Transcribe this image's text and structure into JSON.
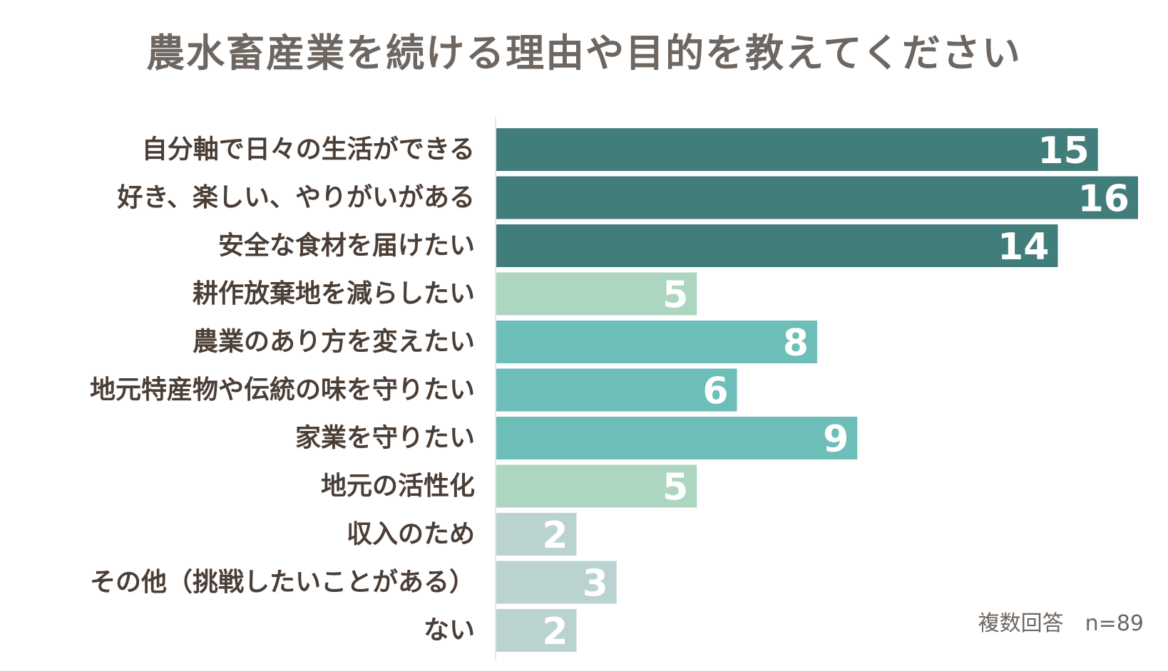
{
  "chart_data": {
    "type": "bar",
    "orientation": "horizontal",
    "title": "農水畜産業を続ける理由や目的を教えてください",
    "categories": [
      "自分軸で日々の生活ができる",
      "好き、楽しい、やりがいがある",
      "安全な食材を届けたい",
      "耕作放棄地を減らしたい",
      "農業のあり方を変えたい",
      "地元特産物や伝統の味を守りたい",
      "家業を守りたい",
      "地元の活性化",
      "収入のため",
      "その他（挑戦したいことがある）",
      "ない"
    ],
    "values": [
      15,
      16,
      14,
      5,
      8,
      6,
      9,
      5,
      2,
      3,
      2
    ],
    "bar_colors": [
      "#417d7a",
      "#417d7a",
      "#417d7a",
      "#acd6bf",
      "#6dbdb8",
      "#6dbdb8",
      "#6dbdb8",
      "#acd6bf",
      "#bad3d1",
      "#bad3d1",
      "#bad3d1"
    ],
    "xlim": [
      0,
      16
    ],
    "grid": false,
    "legend": "none",
    "footnote": "複数回答　n=89"
  }
}
